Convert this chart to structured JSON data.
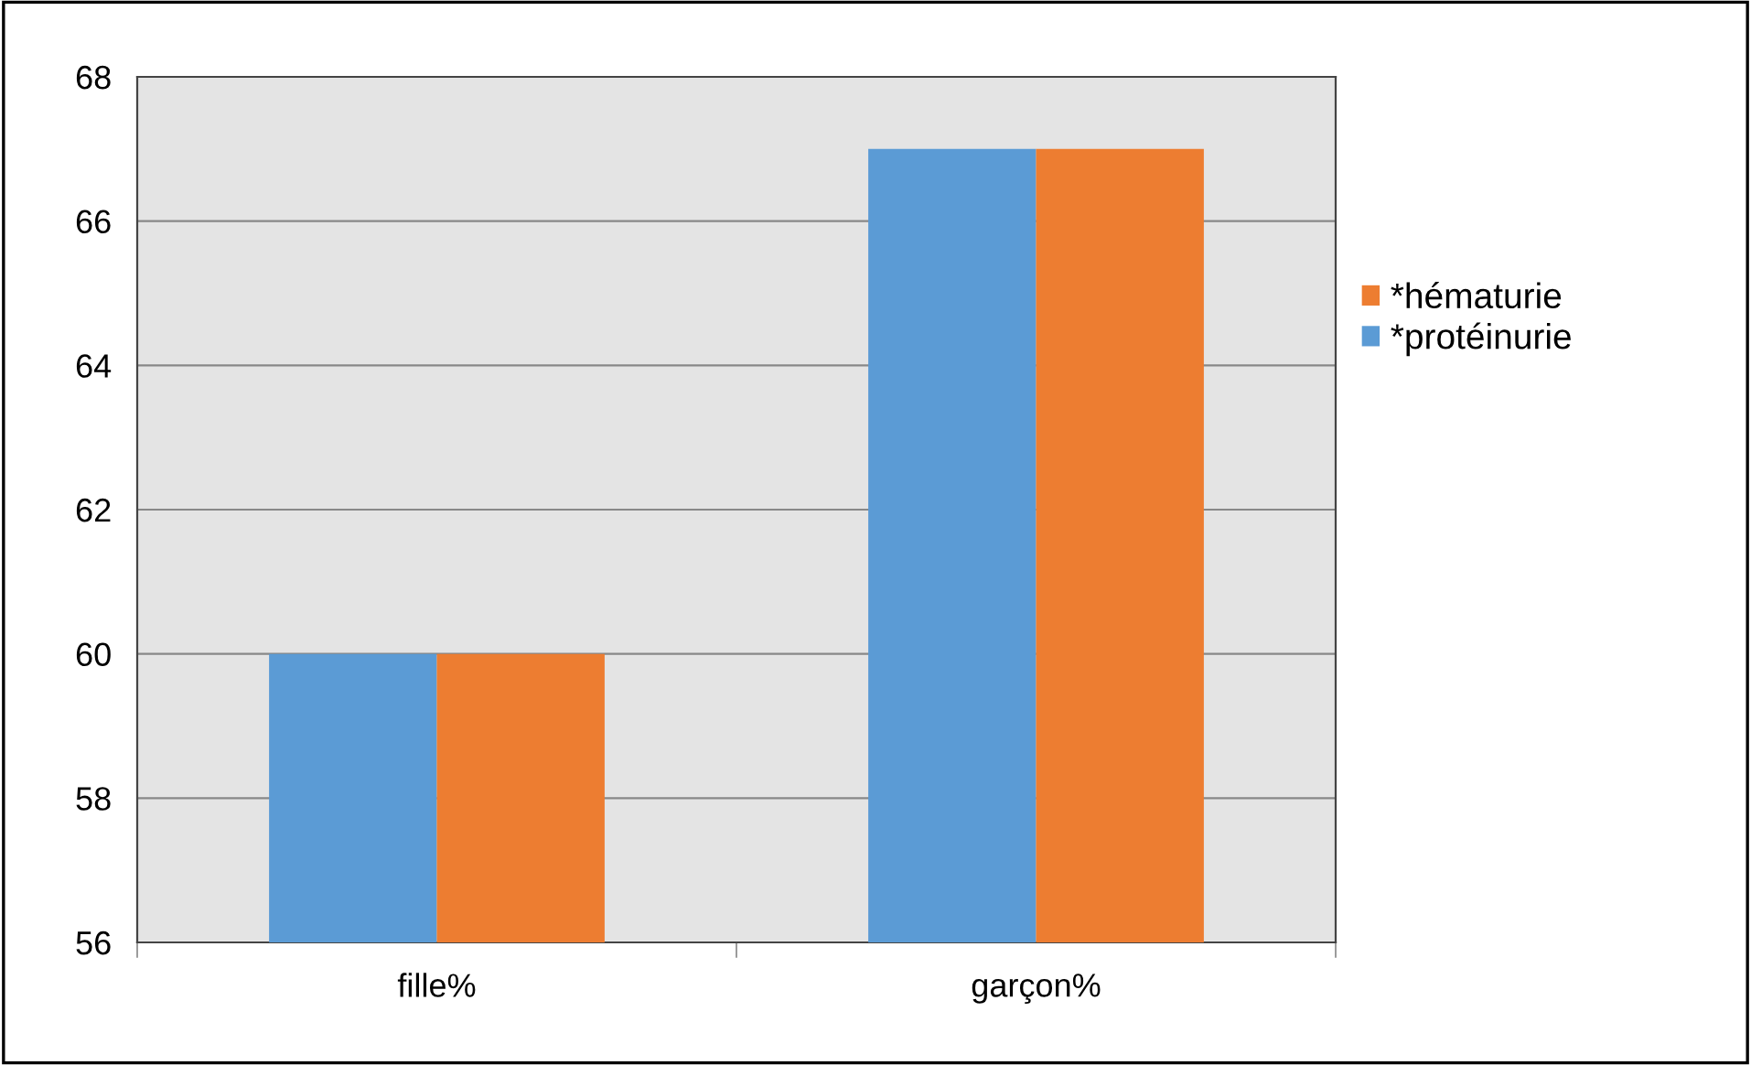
{
  "chart_data": {
    "type": "bar",
    "categories": [
      "fille%",
      "garçon%"
    ],
    "series": [
      {
        "name": "*protéinurie",
        "color": "#5b9bd5",
        "values": [
          60,
          67
        ]
      },
      {
        "name": "*hématurie",
        "color": "#ed7d31",
        "values": [
          60,
          67
        ]
      }
    ],
    "ylim": [
      56,
      68
    ],
    "yticks": [
      56,
      58,
      60,
      62,
      64,
      66,
      68
    ],
    "grid": "y",
    "legend": "right"
  }
}
